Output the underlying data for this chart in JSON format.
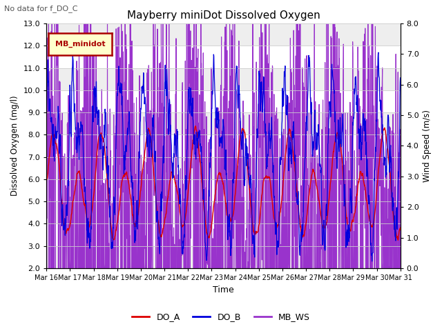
{
  "title": "Mayberry miniDot Dissolved Oxygen",
  "subtitle": "No data for f_DO_C",
  "xlabel": "Time",
  "ylabel_left": "Dissolved Oxygen (mg/l)",
  "ylabel_right": "Wind Speed (m/s)",
  "ylim_left": [
    2.0,
    13.0
  ],
  "ylim_right": [
    0.0,
    8.0
  ],
  "yticks_left": [
    2.0,
    3.0,
    4.0,
    5.0,
    6.0,
    7.0,
    8.0,
    9.0,
    10.0,
    11.0,
    12.0,
    13.0
  ],
  "yticks_right": [
    0.0,
    1.0,
    2.0,
    3.0,
    4.0,
    5.0,
    6.0,
    7.0,
    8.0
  ],
  "xtick_labels": [
    "Mar 16",
    "Mar 17",
    "Mar 18",
    "Mar 19",
    "Mar 20",
    "Mar 21",
    "Mar 22",
    "Mar 23",
    "Mar 24",
    "Mar 25",
    "Mar 26",
    "Mar 27",
    "Mar 28",
    "Mar 29",
    "Mar 30",
    "Mar 31"
  ],
  "legend_entries": [
    {
      "label": "DO_A",
      "color": "#dd0000",
      "linestyle": "-"
    },
    {
      "label": "DO_B",
      "color": "#0000dd",
      "linestyle": "-"
    },
    {
      "label": "MB_WS",
      "color": "#9933cc",
      "linestyle": "-"
    }
  ],
  "inset_legend_label": "MB_minidot",
  "inset_legend_text_color": "#aa0000",
  "inset_legend_bg": "#ffffcc",
  "inset_legend_edge_color": "#aa0000",
  "color_DO_A": "#dd0000",
  "color_DO_B": "#0000dd",
  "color_MB_WS": "#9933cc",
  "background_color": "#ffffff",
  "grid_color": "#cccccc",
  "seed": 12345
}
